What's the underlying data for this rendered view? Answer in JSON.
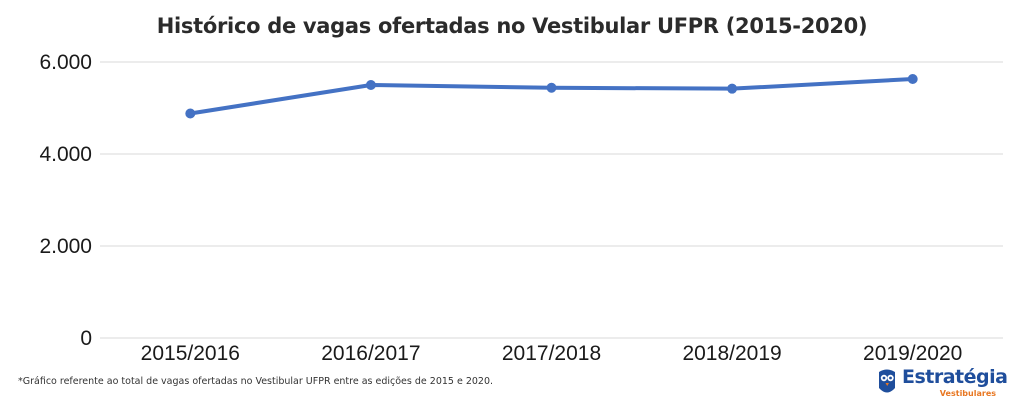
{
  "chart_data": {
    "type": "line",
    "title": "Histórico de vagas ofertadas no Vestibular UFPR (2015-2020)",
    "xlabel": "",
    "ylabel": "",
    "categories": [
      "2015/2016",
      "2016/2017",
      "2017/2018",
      "2018/2019",
      "2019/2020"
    ],
    "series": [
      {
        "values": [
          4880,
          5500,
          5440,
          5420,
          5630
        ]
      }
    ],
    "ylim": [
      0,
      6000
    ],
    "yticks": [
      0,
      2000,
      4000,
      6000
    ],
    "ytick_labels": [
      "0",
      "2.000",
      "4.000",
      "6.000"
    ],
    "grid": true,
    "legend": "none",
    "line_color": "#4472c4",
    "grid_color": "#d9d9d9"
  },
  "footnote": "*Gráfico referente ao total de vagas ofertadas no Vestibular UFPR entre as edições de 2015 e 2020.",
  "logo": {
    "name": "Estratégia",
    "subtitle": "Vestibulares",
    "name_color": "#1f4e9c",
    "subtitle_color": "#e87722"
  }
}
